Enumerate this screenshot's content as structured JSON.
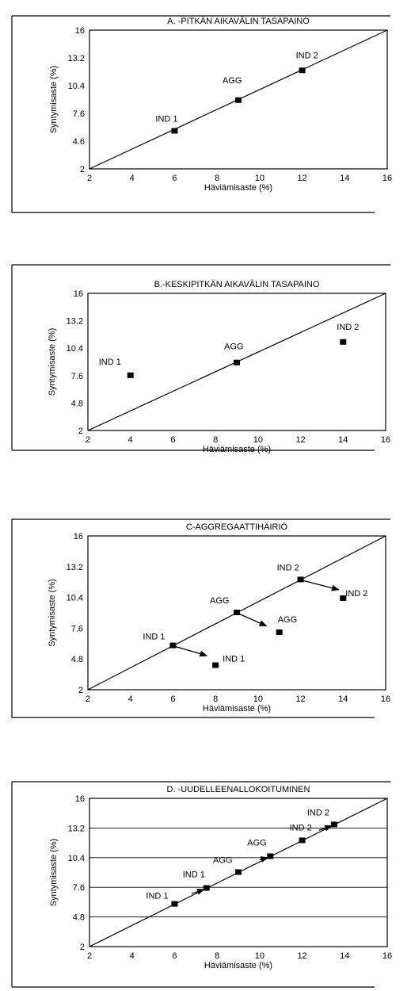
{
  "chart_data": [
    {
      "type": "scatter",
      "title": "A. -PITKÄN AIKAVÄLIN TASAPAINO",
      "xlabel": "Häviämisaste (%)",
      "ylabel": "Syntymisaste (%)",
      "xlim": [
        2,
        16
      ],
      "ylim": [
        2,
        16
      ],
      "xticks": [
        "2",
        "4",
        "6",
        "8",
        "10",
        "12",
        "14",
        "16"
      ],
      "yticks": [
        "2",
        "4.6",
        "7.6",
        "10.4",
        "13.2",
        "16"
      ],
      "points": [
        {
          "label": "IND 1",
          "x": 6,
          "y": 5.8
        },
        {
          "label": "AGG",
          "x": 9,
          "y": 8.9
        },
        {
          "label": "IND 2",
          "x": 12,
          "y": 11.9
        }
      ],
      "diagonal": true,
      "grid": "none"
    },
    {
      "type": "scatter",
      "title": "B.-KESKIPITKÄN AIKAVÄLIN TASAPAINO",
      "xlabel": "Häviämisaste (%)",
      "ylabel": "Syntymisaste (%)",
      "xlim": [
        2,
        16
      ],
      "ylim": [
        2,
        16
      ],
      "xticks": [
        "2",
        "4",
        "6",
        "8",
        "10",
        "12",
        "14",
        "16"
      ],
      "yticks": [
        "2",
        "4.8",
        "7.6",
        "10.4",
        "13.2",
        "16"
      ],
      "points": [
        {
          "label": "IND 1",
          "x": 4,
          "y": 7.6
        },
        {
          "label": "AGG",
          "x": 9,
          "y": 8.9
        },
        {
          "label": "IND 2",
          "x": 14,
          "y": 11.0
        }
      ],
      "diagonal": true,
      "grid": "none"
    },
    {
      "type": "scatter",
      "title": "C-AGGREGAATTIHÄIRIÖ",
      "xlabel": "Häviämisaste (%)",
      "ylabel": "Syntymisaste (%)",
      "xlim": [
        2,
        16
      ],
      "ylim": [
        2,
        16
      ],
      "xticks": [
        "2",
        "4",
        "6",
        "8",
        "10",
        "12",
        "14",
        "16"
      ],
      "yticks": [
        "2",
        "4.8",
        "7.6",
        "10.4",
        "13.2",
        "16"
      ],
      "points": [
        {
          "label": "IND 1",
          "x": 6,
          "y": 6.0
        },
        {
          "label": "IND 1",
          "x": 8,
          "y": 4.2
        },
        {
          "label": "AGG",
          "x": 9,
          "y": 9.0
        },
        {
          "label": "AGG",
          "x": 11,
          "y": 7.2
        },
        {
          "label": "IND 2",
          "x": 12,
          "y": 12.0
        },
        {
          "label": "IND 2",
          "x": 14,
          "y": 10.3
        }
      ],
      "arrows": [
        {
          "from": [
            6,
            6.0
          ],
          "to": [
            7.6,
            5.1
          ]
        },
        {
          "from": [
            9,
            9.0
          ],
          "to": [
            10.4,
            7.8
          ]
        },
        {
          "from": [
            12,
            12.0
          ],
          "to": [
            13.8,
            11.1
          ]
        }
      ],
      "diagonal": true,
      "grid": "none"
    },
    {
      "type": "scatter",
      "title": "D. -UUDELLEENALLOKOITUMINEN",
      "xlabel": "Häviämisaste (%)",
      "ylabel": "Syntymisaste (%)",
      "xlim": [
        2,
        16
      ],
      "ylim": [
        2,
        16
      ],
      "xticks": [
        "2",
        "4",
        "6",
        "8",
        "10",
        "12",
        "14",
        "16"
      ],
      "yticks": [
        "2",
        "4.8",
        "7.6",
        "10.4",
        "13.2",
        "16"
      ],
      "points": [
        {
          "label": "IND 1",
          "x": 6,
          "y": 6.0
        },
        {
          "label": "IND 1",
          "x": 7.5,
          "y": 7.5
        },
        {
          "label": "AGG",
          "x": 9,
          "y": 9.0
        },
        {
          "label": "AGG",
          "x": 10.5,
          "y": 10.5
        },
        {
          "label": "IND 2",
          "x": 12,
          "y": 12.0
        },
        {
          "label": "IND 2",
          "x": 13.5,
          "y": 13.5
        }
      ],
      "arrows": [
        {
          "from": [
            6.8,
            7.0
          ],
          "to": [
            7.4,
            7.4
          ]
        },
        {
          "from": [
            10.0,
            10.2
          ],
          "to": [
            10.4,
            10.4
          ]
        },
        {
          "from": [
            12.8,
            13.0
          ],
          "to": [
            13.4,
            13.4
          ]
        }
      ],
      "diagonal": true,
      "grid": "horizontal"
    }
  ]
}
